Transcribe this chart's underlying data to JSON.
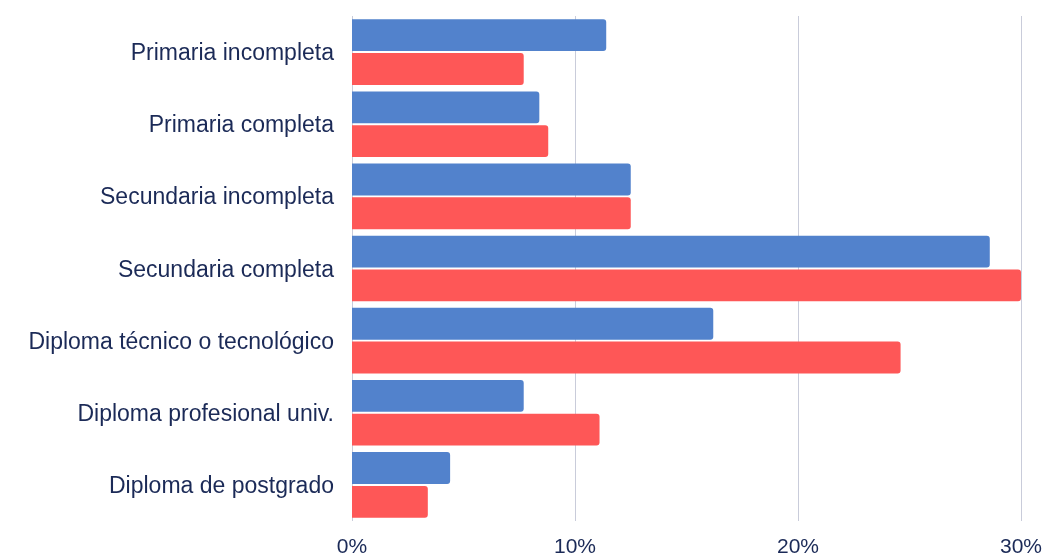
{
  "chart_data": {
    "type": "bar",
    "orientation": "horizontal",
    "categories": [
      "Primaria incompleta",
      "Primaria completa",
      "Secundaria incompleta",
      "Secundaria completa",
      "Diploma técnico o tecnológico",
      "Diploma profesional univ.",
      "Diploma de postgrado"
    ],
    "series": [
      {
        "color": "#5282cc",
        "values": [
          11.4,
          8.4,
          12.5,
          28.6,
          16.2,
          7.7,
          4.4
        ]
      },
      {
        "color": "#fe5757",
        "values": [
          7.7,
          8.8,
          12.5,
          30.0,
          24.6,
          11.1,
          3.4
        ]
      }
    ],
    "xlim": [
      0,
      30
    ],
    "xticks": [
      {
        "value": 0,
        "label": "0%"
      },
      {
        "value": 10,
        "label": "10%"
      },
      {
        "value": 20,
        "label": "20%"
      },
      {
        "value": 30,
        "label": "30%"
      }
    ],
    "grid": "x"
  }
}
